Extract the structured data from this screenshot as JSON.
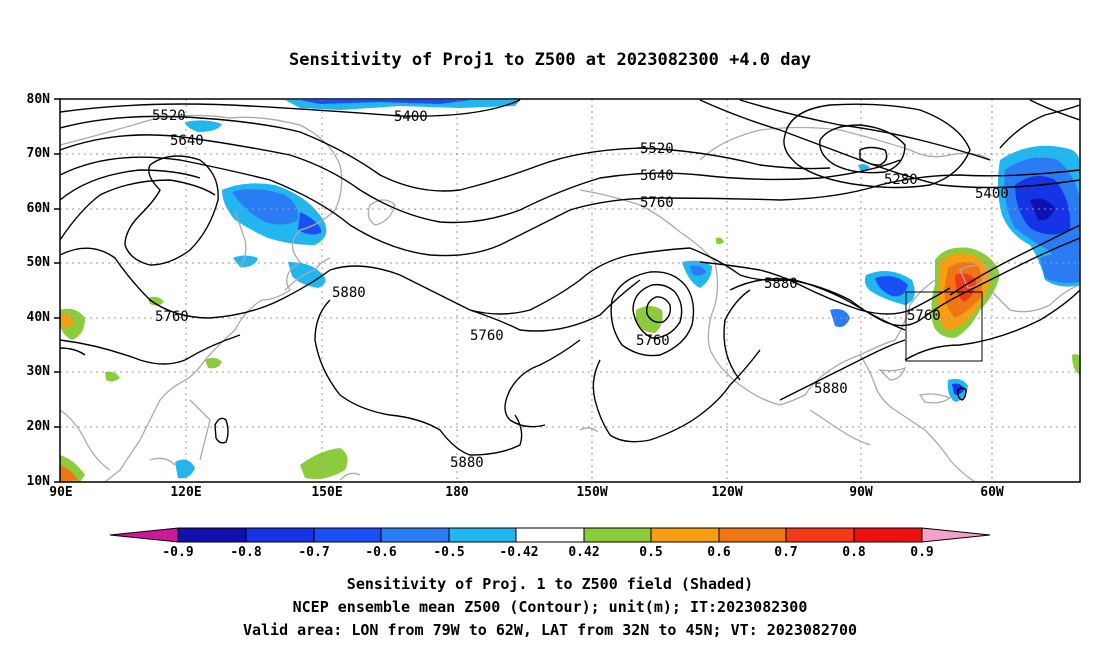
{
  "title": "Sensitivity of Proj1 to Z500 at 2023082300 +4.0 day",
  "lat_labels": [
    "80N",
    "70N",
    "60N",
    "50N",
    "40N",
    "30N",
    "20N",
    "10N"
  ],
  "lon_labels": [
    "90E",
    "120E",
    "150E",
    "180",
    "150W",
    "120W",
    "90W",
    "60W"
  ],
  "contour_labels": [
    "5520",
    "5640",
    "5400",
    "5520",
    "5640",
    "5760",
    "5280",
    "5400",
    "5760",
    "5880",
    "5760",
    "5760",
    "5880",
    "5760",
    "5880",
    "5880"
  ],
  "colorbar": {
    "labels": [
      "-0.9",
      "-0.8",
      "-0.7",
      "-0.6",
      "-0.5",
      "-0.42",
      "0.42",
      "0.5",
      "0.6",
      "0.7",
      "0.8",
      "0.9"
    ],
    "colors": [
      "#c81a9b",
      "#1010b0",
      "#1434e6",
      "#1a4ff6",
      "#2a7cf5",
      "#21b6f0",
      "#19cdf6",
      "#ffffff",
      "#8ccc3c",
      "#f89e12",
      "#f07514",
      "#f23a17",
      "#ee1010",
      "#f5a0c8"
    ]
  },
  "captions": {
    "line1": "Sensitivity of Proj. 1 to Z500 field (Shaded)",
    "line2": "NCEP ensemble mean Z500 (Contour); unit(m); IT:2023082300",
    "line3": "Valid area: LON from 79W to 62W, LAT from 32N to 45N; VT: 2023082700"
  }
}
